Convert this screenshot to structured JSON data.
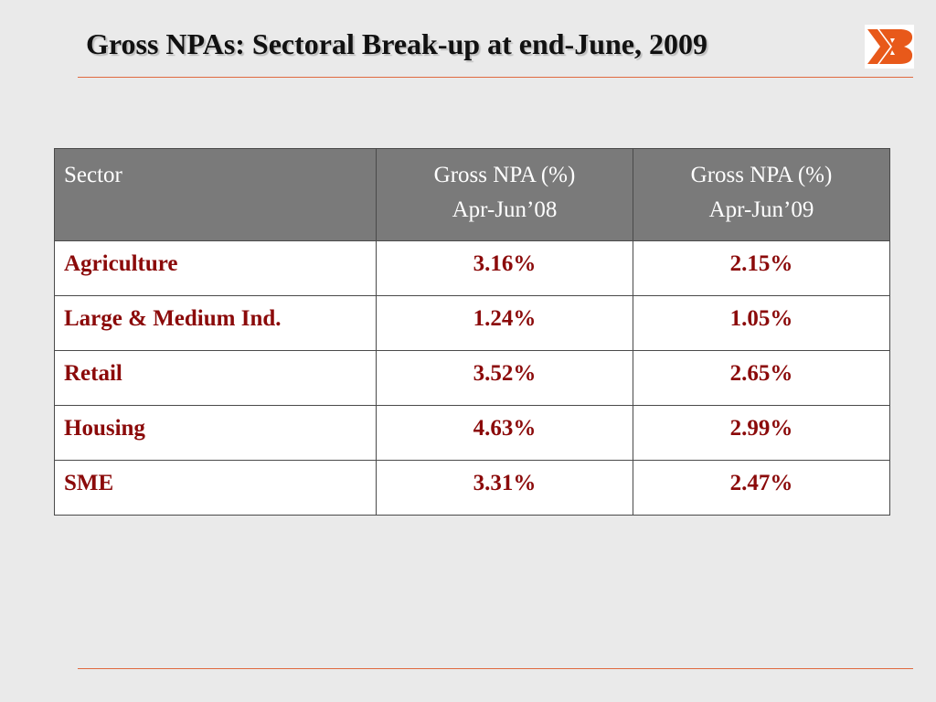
{
  "slide": {
    "title": "Gross NPAs: Sectoral Break-up at end-June, 2009",
    "logo": {
      "icon": "bank-of-baroda-logo-icon",
      "color": "#e8591a"
    },
    "accent_color": "#e06a40"
  },
  "table": {
    "headers": {
      "sector": "Sector",
      "col1_line1": "Gross NPA (%)",
      "col1_line2": "Apr-Jun’08",
      "col2_line1": "Gross NPA (%)",
      "col2_line2": "Apr-Jun’09"
    },
    "rows": [
      {
        "sector": "Agriculture",
        "q2008": "3.16%",
        "q2009": "2.15%"
      },
      {
        "sector": "Large & Medium Ind.",
        "q2008": "1.24%",
        "q2009": "1.05%"
      },
      {
        "sector": "Retail",
        "q2008": "3.52%",
        "q2009": "2.65%"
      },
      {
        "sector": "Housing",
        "q2008": "4.63%",
        "q2009": "2.99%"
      },
      {
        "sector": "SME",
        "q2008": "3.31%",
        "q2009": "2.47%"
      }
    ],
    "colors": {
      "header_bg": "#7a7a7a",
      "header_text": "#ffffff",
      "cell_text": "#8b0a0a"
    }
  }
}
